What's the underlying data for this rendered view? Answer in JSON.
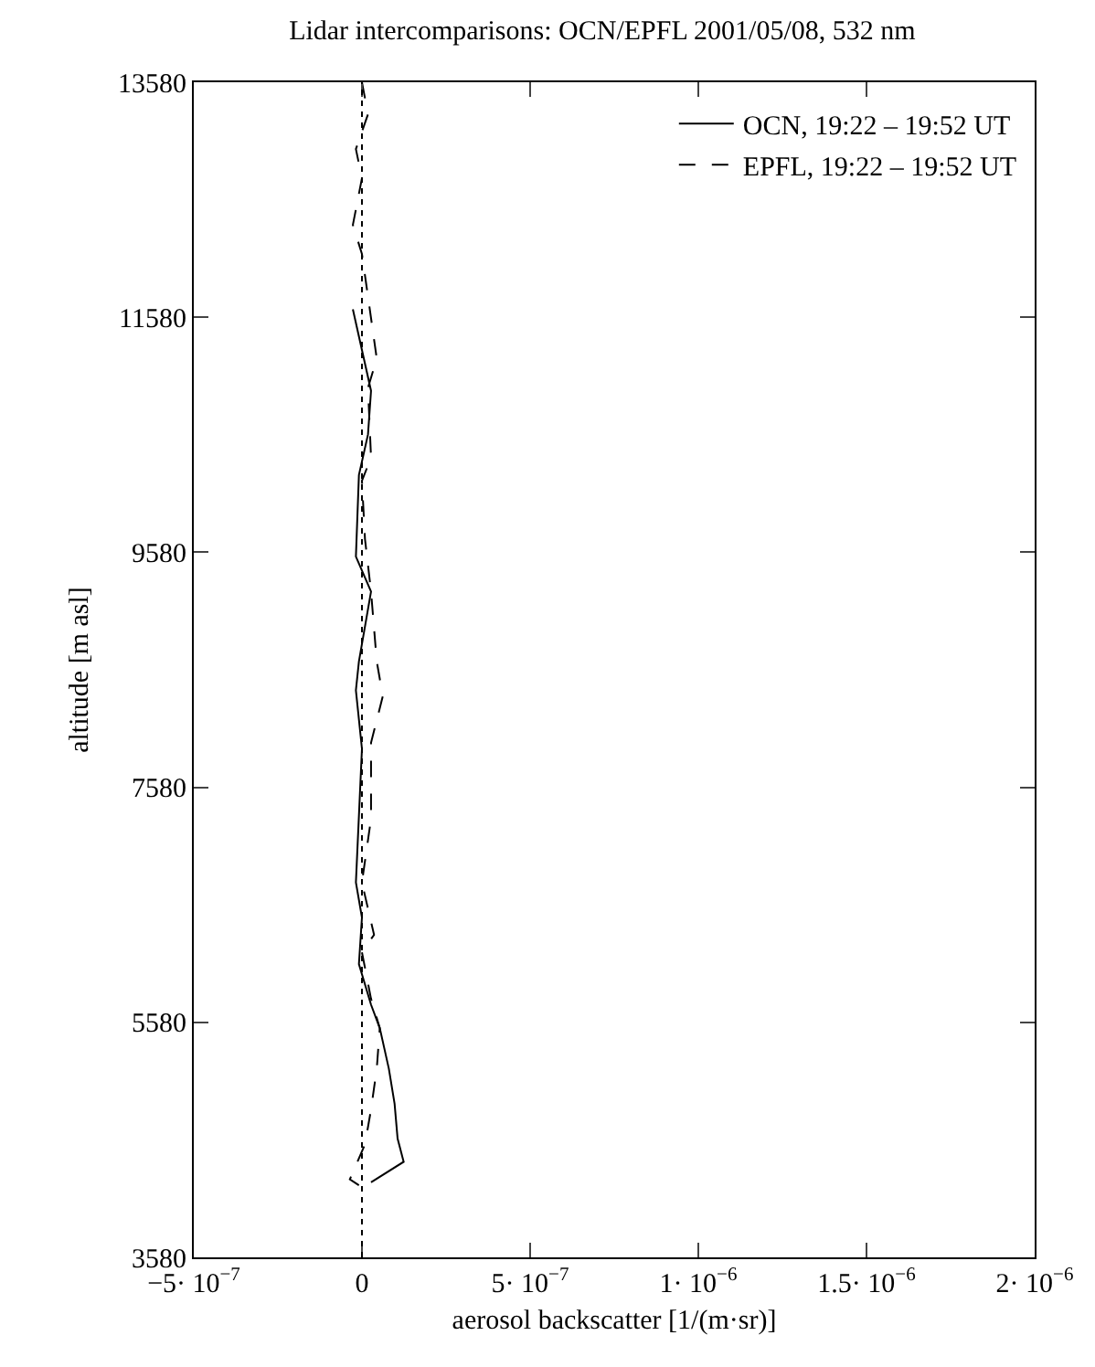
{
  "chart_data": {
    "type": "line",
    "title": "Lidar intercomparisons: OCN/EPFL 2001/05/08, 532 nm",
    "xlabel": "aerosol backscatter [1/(m·sr)]",
    "ylabel": "altitude [m asl]",
    "xlim": [
      -5e-07,
      2e-06
    ],
    "ylim": [
      3580,
      13580
    ],
    "xticks": [
      {
        "value": -5e-07,
        "label": "−5· 10$^{−7}$"
      },
      {
        "value": 0,
        "label": "0"
      },
      {
        "value": 5e-07,
        "label": "5· 10$^{−7}$"
      },
      {
        "value": 1e-06,
        "label": "1· 10$^{−6}$"
      },
      {
        "value": 1.5e-06,
        "label": "1.5· 10$^{−6}$"
      },
      {
        "value": 2e-06,
        "label": "2· 10$^{−6}$"
      }
    ],
    "yticks": [
      3580,
      5580,
      7580,
      9580,
      11580,
      13580
    ],
    "grid": false,
    "legend": "top right",
    "marker": "none",
    "ref_lines": [
      {
        "axis": "x",
        "value": 0,
        "color": "#000000",
        "line_style": "dotted"
      }
    ],
    "series": [
      {
        "name": "OCN, 19:22 – 19:52 UT",
        "color": "#000000",
        "line_style": "solid",
        "x": [
          -2.7e-08,
          2.7e-08,
          1.8e-08,
          -9e-09,
          -1.8e-08,
          2.7e-08,
          -9e-09,
          -1.8e-08,
          0,
          -1.8e-08,
          0,
          -9e-09,
          2.7e-08,
          5.3e-08,
          8e-08,
          9.7e-08,
          1.06e-07,
          1.24e-07,
          2.7e-08
        ],
        "values": [
          11648,
          10954,
          10583,
          10237,
          9543,
          9246,
          8651,
          8405,
          7908,
          6770,
          6473,
          6076,
          5730,
          5531,
          5185,
          4888,
          4590,
          4393,
          4219
        ]
      },
      {
        "name": "EPFL, 19:22 – 19:52 UT",
        "color": "#000000",
        "line_style": "dashed",
        "x": [
          0,
          1.8e-08,
          -1.8e-08,
          0,
          -2.7e-08,
          0,
          4.4e-08,
          1.8e-08,
          2.7e-08,
          0,
          9e-09,
          2.7e-08,
          4.4e-08,
          6.2e-08,
          2.7e-08,
          2.7e-08,
          0,
          3.6e-08,
          0,
          2.7e-08,
          5.3e-08,
          4.4e-08,
          2.7e-08,
          9e-09,
          -3.6e-08,
          -9e-09
        ],
        "values": [
          13580,
          13308,
          13011,
          12763,
          12366,
          12119,
          11228,
          10980,
          10386,
          10188,
          9692,
          9246,
          8651,
          8356,
          7959,
          7315,
          6770,
          6325,
          6176,
          5780,
          5531,
          5185,
          4839,
          4542,
          4244,
          4194
        ]
      }
    ]
  }
}
